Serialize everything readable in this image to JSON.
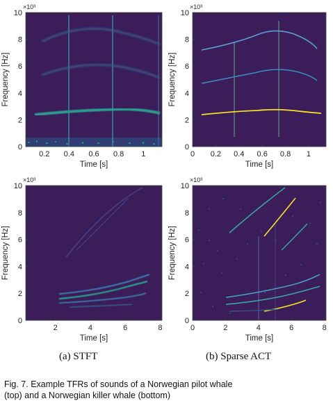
{
  "panels": [
    {
      "id": "a-top",
      "xlabel": "Time [s]",
      "ylabel": "Frequency [Hz]",
      "exponent": "×10³",
      "xticks": [
        "0.2",
        "0.4",
        "0.6",
        "0.8",
        "1"
      ],
      "yticks": [
        "0",
        "2",
        "4",
        "6",
        "8",
        "10"
      ]
    },
    {
      "id": "b-top",
      "xlabel": "Time [s]",
      "ylabel": "Frequency [Hz]",
      "exponent": "×10³",
      "xticks": [
        "0",
        "0.2",
        "0.4",
        "0.6",
        "0.8",
        "1"
      ],
      "yticks": [
        "0",
        "2",
        "4",
        "6",
        "8",
        "10"
      ]
    },
    {
      "id": "a-bottom",
      "xlabel": "Time [s]",
      "ylabel": "Frequency [Hz]",
      "exponent": "×10³",
      "xticks": [
        "2",
        "4",
        "6",
        "8"
      ],
      "yticks": [
        "0",
        "2",
        "4",
        "6",
        "8",
        "10"
      ]
    },
    {
      "id": "b-bottom",
      "xlabel": "Time [s]",
      "ylabel": "Frequency [Hz]",
      "exponent": "×10³",
      "xticks": [
        "0",
        "2",
        "4",
        "6",
        "8"
      ],
      "yticks": [
        "0",
        "2",
        "4",
        "6",
        "8",
        "10"
      ]
    }
  ],
  "subcaptions": [
    "(a)  STFT",
    "(b)  Sparse  ACT"
  ],
  "caption": {
    "line1": "Fig. 7. Example TFRs of sounds of a Norwegian pilot whale",
    "line2": "(top) and a Norwegian killer whale (bottom)"
  },
  "colors": {
    "background": "#3b1d5a",
    "low": "#3e4a89",
    "mid": "#31688e",
    "teal": "#26a784",
    "high": "#f7e225"
  }
}
